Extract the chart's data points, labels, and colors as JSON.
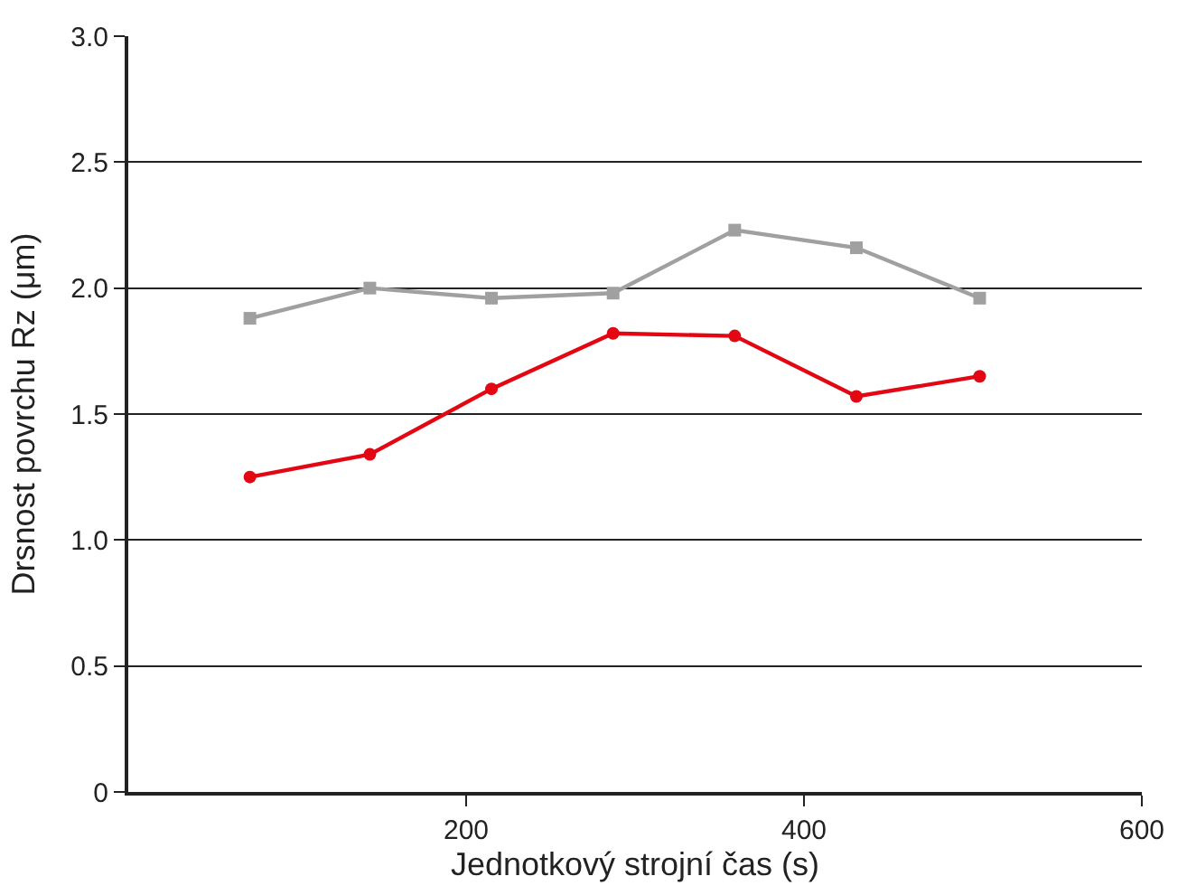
{
  "chart_data": {
    "type": "line",
    "xlabel": "Jednotkový strojní čas (s)",
    "ylabel": "Drsnost povrchu Rz (μm)",
    "x": [
      72,
      143,
      215,
      287,
      359,
      431,
      504
    ],
    "series": [
      {
        "color": "#a0a0a0",
        "marker": "square",
        "values": [
          1.88,
          2.0,
          1.96,
          1.98,
          2.23,
          2.16,
          1.96
        ]
      },
      {
        "color": "#e30613",
        "marker": "circle",
        "values": [
          1.25,
          1.34,
          1.6,
          1.82,
          1.81,
          1.57,
          1.65
        ]
      }
    ],
    "xlim": [
      0,
      600
    ],
    "xticks": [
      200,
      400,
      600
    ],
    "ylim": [
      0,
      3
    ],
    "yticks": [
      {
        "value": 0,
        "label": "0"
      },
      {
        "value": 0.5,
        "label": "0.5"
      },
      {
        "value": 1,
        "label": "1.0"
      },
      {
        "value": 1.5,
        "label": "1.5"
      },
      {
        "value": 2,
        "label": "2.0"
      },
      {
        "value": 2.5,
        "label": "2.5"
      },
      {
        "value": 3,
        "label": "3.0"
      }
    ],
    "grid": "y",
    "legend": false,
    "line_style": "solid"
  }
}
